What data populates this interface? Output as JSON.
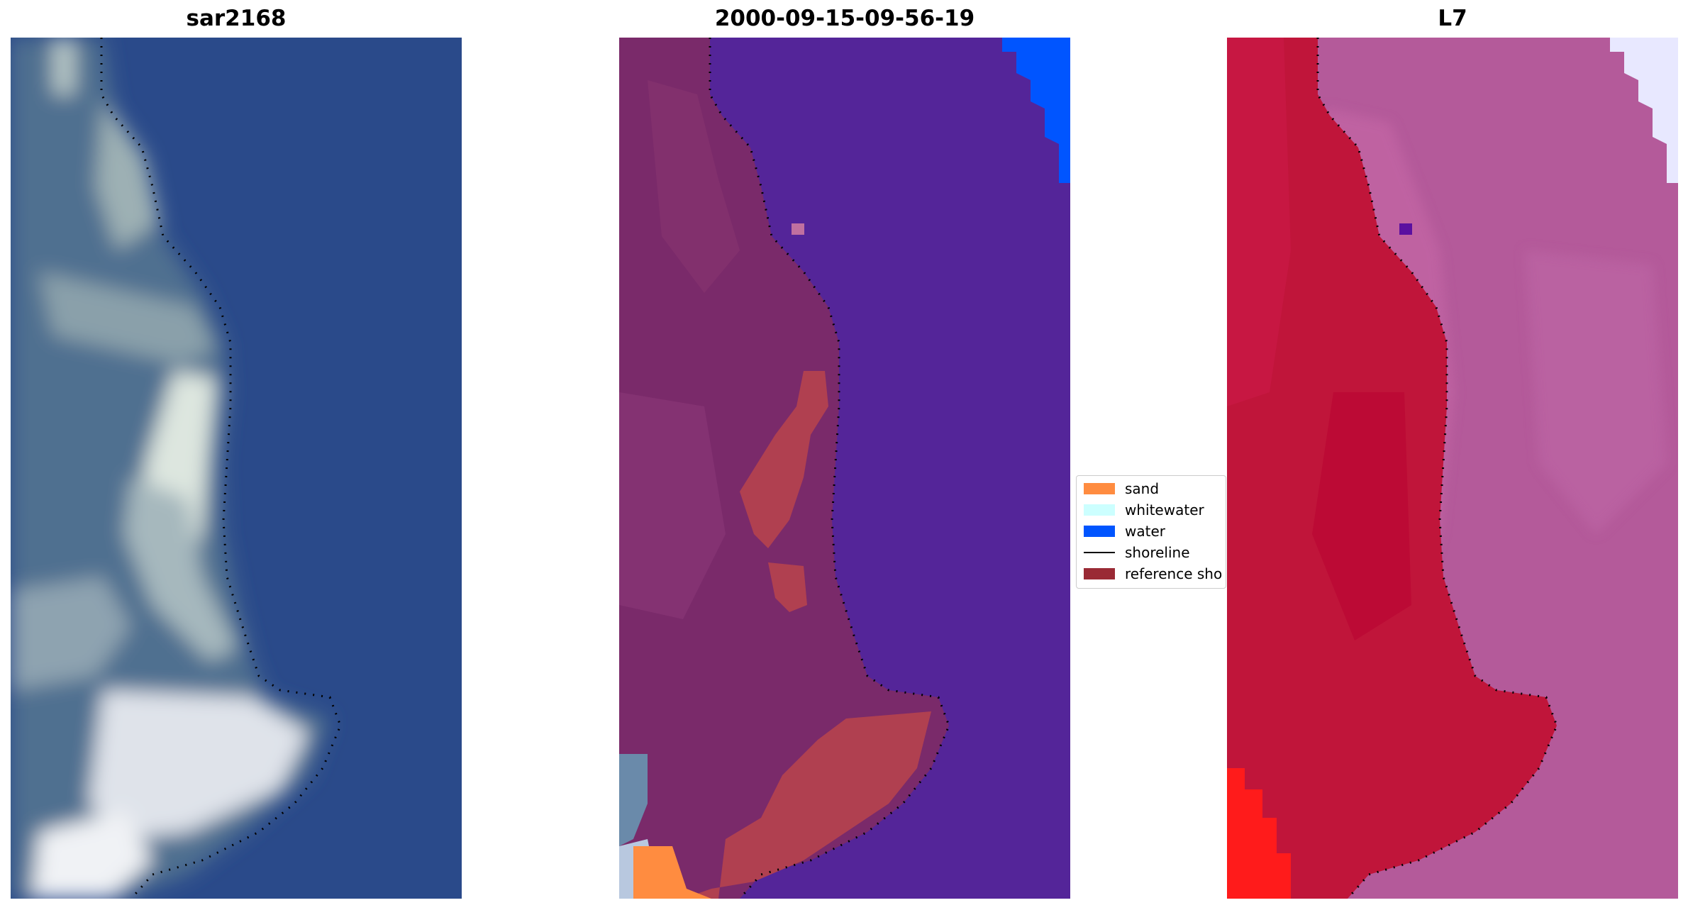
{
  "panels": [
    {
      "title": "sar2168"
    },
    {
      "title": "2000-09-15-09-56-19"
    },
    {
      "title": "L7"
    }
  ],
  "legend": {
    "items": [
      {
        "label": "sand",
        "color": "#ff8c40",
        "kind": "patch"
      },
      {
        "label": "whitewater",
        "color": "#ccffff",
        "kind": "patch"
      },
      {
        "label": "water",
        "color": "#0055ff",
        "kind": "patch"
      },
      {
        "label": "shoreline",
        "color": "#000000",
        "kind": "line"
      },
      {
        "label": "reference sho",
        "color": "#9a2a35",
        "kind": "patch"
      }
    ]
  },
  "colors": {
    "sar_water": "#2a4a8a",
    "sar_land": "#4f6f90",
    "sar_bright": "#e6ecef",
    "class_land": "#7a2a6a",
    "class_water": "#542599",
    "class_reference": "#b04050",
    "l7_land": "#c0153a",
    "l7_water": "#b45a9a",
    "l7_red": "#ff1b1b",
    "l7_white": "#e8e8ff"
  }
}
